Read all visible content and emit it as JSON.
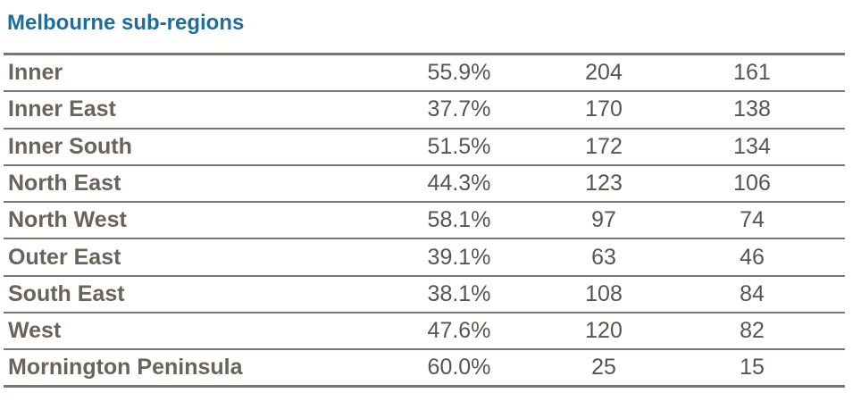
{
  "title": "Melbourne sub-regions",
  "rows": [
    {
      "name": "Inner",
      "pct": "55.9%",
      "v1": "204",
      "v2": "161"
    },
    {
      "name": "Inner East",
      "pct": "37.7%",
      "v1": "170",
      "v2": "138"
    },
    {
      "name": "Inner South",
      "pct": "51.5%",
      "v1": "172",
      "v2": "134"
    },
    {
      "name": "North East",
      "pct": "44.3%",
      "v1": "123",
      "v2": "106"
    },
    {
      "name": "North West",
      "pct": "58.1%",
      "v1": "97",
      "v2": "74"
    },
    {
      "name": "Outer East",
      "pct": "39.1%",
      "v1": "63",
      "v2": "46"
    },
    {
      "name": "South East",
      "pct": "38.1%",
      "v1": "108",
      "v2": "84"
    },
    {
      "name": "West",
      "pct": "47.6%",
      "v1": "120",
      "v2": "82"
    },
    {
      "name": "Mornington Peninsula",
      "pct": "60.0%",
      "v1": "25",
      "v2": "15"
    }
  ],
  "colors": {
    "title": "#1f6d9b",
    "text": "#5a5450",
    "rule": "#7d746c"
  }
}
